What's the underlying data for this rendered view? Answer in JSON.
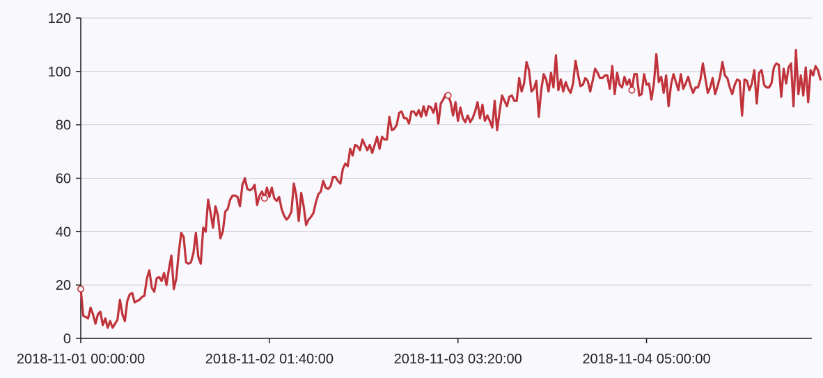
{
  "colors": {
    "background": "#f8f8fd",
    "series": "#c0333a",
    "grid": "#c9c9cf",
    "axis": "#1a1a1a"
  },
  "chart_data": {
    "type": "line",
    "title": "",
    "xlabel": "",
    "ylabel": "",
    "grid": true,
    "legend": "none",
    "ylim": [
      0,
      120
    ],
    "xlim": [
      "2018-11-01 00:00:00",
      "2018-11-05 03:30:00"
    ],
    "y_ticks": [
      0,
      20,
      40,
      60,
      80,
      100,
      120
    ],
    "x_ticks": [
      "2018-11-01 00:00:00",
      "2018-11-02 01:40:00",
      "2018-11-03 03:20:00",
      "2018-11-04 05:00:00"
    ],
    "x_time_step_minutes": 20,
    "x_start": "2018-11-01 00:00:00",
    "series": [
      {
        "color": "#c0333a",
        "marked_points_minutes": [
          0,
          1500,
          3000,
          4500
        ],
        "values": [
          18.5,
          8.5,
          8,
          7.5,
          11.5,
          9,
          5.5,
          9,
          10,
          5,
          7.5,
          4,
          6.5,
          4,
          5.5,
          7,
          14.5,
          9,
          6.5,
          14,
          16.5,
          17,
          13.5,
          14,
          14.5,
          15.5,
          16,
          22.5,
          25.5,
          19,
          17.5,
          22.5,
          23,
          21.5,
          24.5,
          20,
          26,
          31,
          18.5,
          22.5,
          32,
          39.5,
          38,
          28.5,
          28,
          28.5,
          32,
          39.5,
          30.5,
          28,
          41.5,
          40,
          52,
          47,
          41.5,
          49.5,
          46,
          37.5,
          40,
          47.5,
          48.5,
          52,
          53.5,
          53.5,
          53,
          49.5,
          57.5,
          60,
          56,
          55.5,
          56,
          57.5,
          50,
          53.5,
          55,
          52.5,
          56.5,
          53,
          56.5,
          52.5,
          51.5,
          53,
          48.5,
          46,
          44.5,
          45.5,
          47.5,
          58,
          53.5,
          44,
          54.5,
          49.5,
          42.5,
          44.5,
          45.5,
          47,
          51,
          54,
          55,
          59,
          56.5,
          56,
          57,
          60.5,
          60.5,
          59,
          58,
          63.5,
          65.5,
          64.5,
          71,
          68.5,
          72.5,
          72,
          70.5,
          74.5,
          72.5,
          70.5,
          72.5,
          69.5,
          72.5,
          75.5,
          71,
          75.5,
          74.5,
          74.5,
          83,
          78,
          78.5,
          80,
          84.5,
          85,
          82.5,
          82.5,
          80.5,
          85,
          85,
          83.5,
          85.5,
          83,
          87,
          83.5,
          87,
          86.5,
          84.5,
          88,
          80.5,
          88,
          89.5,
          91.5,
          91,
          88.5,
          83.5,
          88.5,
          81.5,
          86.5,
          82.5,
          81,
          83.5,
          81,
          82.5,
          85,
          88.5,
          82.5,
          87.5,
          81.5,
          83.5,
          81.5,
          79,
          89,
          78,
          85,
          91,
          89,
          87,
          90.5,
          91,
          89,
          89,
          97.5,
          92.5,
          95.5,
          103.5,
          100.5,
          92.5,
          93.5,
          96.5,
          83,
          93,
          99,
          97,
          92.5,
          99.5,
          94,
          106,
          93,
          97,
          92.5,
          96,
          93.5,
          92,
          95.5,
          104,
          99,
          94.5,
          95,
          97.5,
          96.5,
          92.5,
          96.5,
          101,
          99.5,
          97.5,
          97.5,
          98.5,
          98.5,
          93.5,
          102,
          91.5,
          99.5,
          95,
          94,
          98,
          95,
          97,
          93,
          99,
          99,
          91,
          91.5,
          99,
          95,
          95.5,
          89.5,
          95.5,
          106.5,
          96,
          98,
          92,
          98.5,
          87,
          95,
          99,
          96,
          93,
          99,
          93.5,
          95.5,
          98,
          94.5,
          92,
          94,
          94,
          97,
          103,
          97.5,
          92,
          94,
          97.5,
          91.5,
          94.5,
          98,
          103.5,
          98.5,
          97.5,
          94,
          91.5,
          95,
          97,
          96.5,
          83.5,
          97,
          96.5,
          93,
          95.5,
          100.5,
          88,
          99.5,
          100.5,
          95,
          94,
          94,
          95.5,
          101.5,
          103,
          102.5,
          90.5,
          101,
          95.5,
          101.5,
          103,
          87,
          108,
          91.5,
          98.5,
          91,
          101.5,
          88.5,
          100.5,
          98.5,
          102,
          100.5,
          97
        ]
      }
    ]
  }
}
